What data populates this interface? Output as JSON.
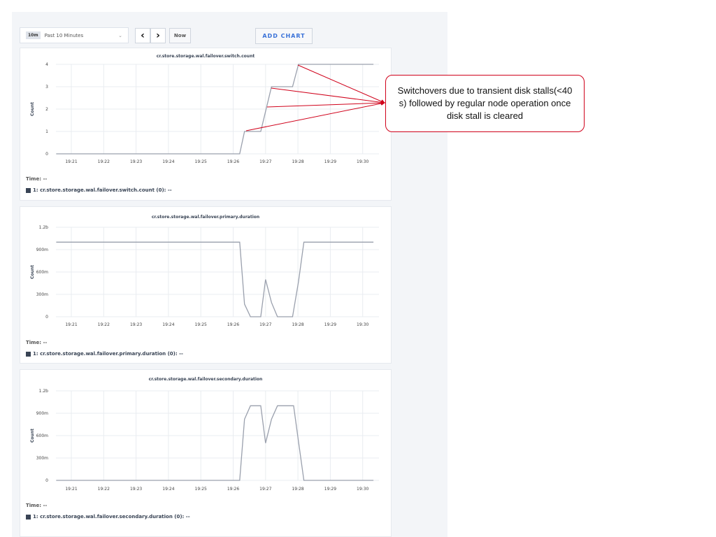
{
  "toolbar": {
    "range_badge": "10m",
    "range_label": "Past 10 Minutes",
    "chevron": "⌄",
    "prev": "‹",
    "next": "›",
    "now_label": "Now",
    "add_chart_label": "ADD CHART"
  },
  "colors": {
    "series": "#9aa0ad",
    "grid": "#e9ecf0",
    "annotation": "#d0021b",
    "accent": "#3a72d8"
  },
  "annotation": {
    "text": "Switchovers due to transient disk stalls(<40 s) followed by regular node operation once disk stall is cleared"
  },
  "chart_data": [
    {
      "type": "line",
      "title": "cr.store.storage.wal.failover.switch.count",
      "ylabel": "Count",
      "ylim": [
        0,
        4
      ],
      "yticks": [
        {
          "v": 0,
          "label": "0"
        },
        {
          "v": 1,
          "label": "1"
        },
        {
          "v": 2,
          "label": "2"
        },
        {
          "v": 3,
          "label": "3"
        },
        {
          "v": 4,
          "label": "4"
        }
      ],
      "xticks": [
        "19:21",
        "19:22",
        "19:23",
        "19:24",
        "19:25",
        "19:26",
        "19:27",
        "19:28",
        "19:29",
        "19:30"
      ],
      "time_label": "Time:  --",
      "legend": "1: cr.store.storage.wal.failover.switch.count (0):  --",
      "series": [
        {
          "x": [
            "19:20:32",
            "19:26:12",
            "19:26:21",
            "19:26:51",
            "19:27:11",
            "19:27:50",
            "19:28:01",
            "19:30:20"
          ],
          "y": [
            0,
            0,
            1,
            1,
            3,
            3,
            4,
            4
          ]
        }
      ]
    },
    {
      "type": "line",
      "title": "cr.store.storage.wal.failover.primary.duration",
      "ylabel": "Count",
      "ylim": [
        0,
        1.2
      ],
      "yticks": [
        {
          "v": 0,
          "label": "0"
        },
        {
          "v": 0.3,
          "label": "300m"
        },
        {
          "v": 0.6,
          "label": "600m"
        },
        {
          "v": 0.9,
          "label": "900m"
        },
        {
          "v": 1.2,
          "label": "1.2b"
        }
      ],
      "xticks": [
        "19:21",
        "19:22",
        "19:23",
        "19:24",
        "19:25",
        "19:26",
        "19:27",
        "19:28",
        "19:29",
        "19:30"
      ],
      "time_label": "Time:  --",
      "legend": "1: cr.store.storage.wal.failover.primary.duration (0):  --",
      "series": [
        {
          "x": [
            "19:20:32",
            "19:26:12",
            "19:26:21",
            "19:26:32",
            "19:26:51",
            "19:27:00",
            "19:27:11",
            "19:27:22",
            "19:27:50",
            "19:28:01",
            "19:28:11",
            "19:30:20"
          ],
          "y": [
            1,
            1,
            0.17,
            0,
            0,
            0.5,
            0.19,
            0,
            0,
            0.47,
            1,
            1
          ]
        }
      ]
    },
    {
      "type": "line",
      "title": "cr.store.storage.wal.failover.secondary.duration",
      "ylabel": "Count",
      "ylim": [
        0,
        1.2
      ],
      "yticks": [
        {
          "v": 0,
          "label": "0"
        },
        {
          "v": 0.3,
          "label": "300m"
        },
        {
          "v": 0.6,
          "label": "600m"
        },
        {
          "v": 0.9,
          "label": "900m"
        },
        {
          "v": 1.2,
          "label": "1.2b"
        }
      ],
      "xticks": [
        "19:21",
        "19:22",
        "19:23",
        "19:24",
        "19:25",
        "19:26",
        "19:27",
        "19:28",
        "19:29",
        "19:30"
      ],
      "time_label": "Time:  --",
      "legend": "1: cr.store.storage.wal.failover.secondary.duration (0):  --",
      "series": [
        {
          "x": [
            "19:20:32",
            "19:26:12",
            "19:26:21",
            "19:26:32",
            "19:26:51",
            "19:27:00",
            "19:27:11",
            "19:27:22",
            "19:27:52",
            "19:28:01",
            "19:28:11",
            "19:30:20"
          ],
          "y": [
            0,
            0,
            0.82,
            1,
            1,
            0.5,
            0.82,
            1,
            1,
            0.52,
            0,
            0
          ]
        }
      ]
    }
  ]
}
